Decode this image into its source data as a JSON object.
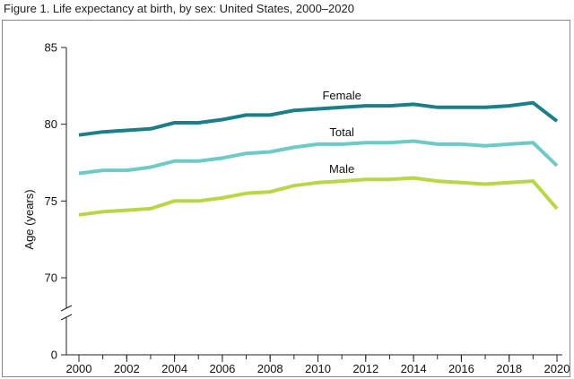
{
  "figure": {
    "title": "Figure 1. Life expectancy at birth, by sex: United States, 2000–2020"
  },
  "chart_data": {
    "type": "line",
    "title": "Figure 1. Life expectancy at birth, by sex: United States, 2000–2020",
    "xlabel": "",
    "ylabel": "Age (years)",
    "x": [
      2000,
      2001,
      2002,
      2003,
      2004,
      2005,
      2006,
      2007,
      2008,
      2009,
      2010,
      2011,
      2012,
      2013,
      2014,
      2015,
      2016,
      2017,
      2018,
      2019,
      2020
    ],
    "x_ticks": [
      "2000",
      "2002",
      "2004",
      "2006",
      "2008",
      "2010",
      "2012",
      "2014",
      "2016",
      "2018",
      "2020"
    ],
    "y_ticks": [
      "0",
      "70",
      "75",
      "80",
      "85"
    ],
    "ylim": [
      70,
      85
    ],
    "axis_break": true,
    "grid": false,
    "legend": "inline labels",
    "series": [
      {
        "name": "Female",
        "color": "#1b7f87",
        "values": [
          79.3,
          79.5,
          79.6,
          79.7,
          80.1,
          80.1,
          80.3,
          80.6,
          80.6,
          80.9,
          81.0,
          81.1,
          81.2,
          81.2,
          81.3,
          81.1,
          81.1,
          81.1,
          81.2,
          81.4,
          80.2
        ]
      },
      {
        "name": "Total",
        "color": "#6ccbc6",
        "values": [
          76.8,
          77.0,
          77.0,
          77.2,
          77.6,
          77.6,
          77.8,
          78.1,
          78.2,
          78.5,
          78.7,
          78.7,
          78.8,
          78.8,
          78.9,
          78.7,
          78.7,
          78.6,
          78.7,
          78.8,
          77.3
        ]
      },
      {
        "name": "Male",
        "color": "#b8d645",
        "values": [
          74.1,
          74.3,
          74.4,
          74.5,
          75.0,
          75.0,
          75.2,
          75.5,
          75.6,
          76.0,
          76.2,
          76.3,
          76.4,
          76.4,
          76.5,
          76.3,
          76.2,
          76.1,
          76.2,
          76.3,
          74.5
        ]
      }
    ]
  }
}
